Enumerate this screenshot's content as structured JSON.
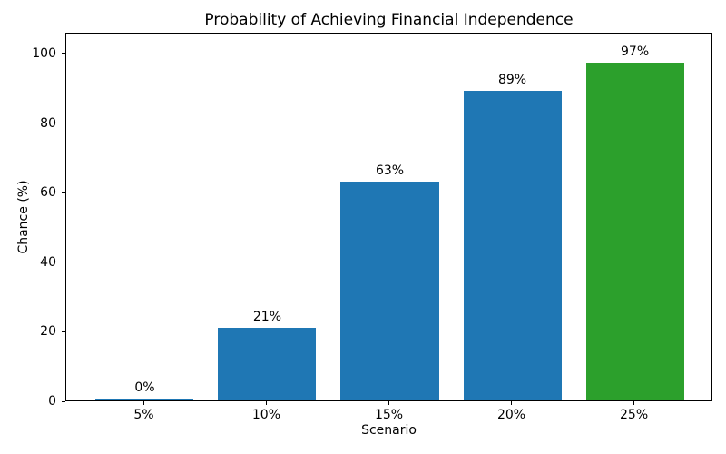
{
  "chart_data": {
    "type": "bar",
    "title": "Probability of Achieving Financial Independence",
    "xlabel": "Scenario",
    "ylabel": "Chance (%)",
    "categories": [
      "5%",
      "10%",
      "15%",
      "20%",
      "25%"
    ],
    "values": [
      0,
      21,
      63,
      89,
      97
    ],
    "bar_labels": [
      "0%",
      "21%",
      "63%",
      "89%",
      "97%"
    ],
    "bar_colors": [
      "#1f77b4",
      "#1f77b4",
      "#1f77b4",
      "#1f77b4",
      "#2ca02c"
    ],
    "y_ticks": [
      0,
      20,
      40,
      60,
      80,
      100
    ],
    "ylim": [
      0,
      106
    ],
    "bar_width_fraction": 0.8,
    "grid": false,
    "legend": "none",
    "background_color": "#ffffff",
    "axis_color": "#000000"
  }
}
